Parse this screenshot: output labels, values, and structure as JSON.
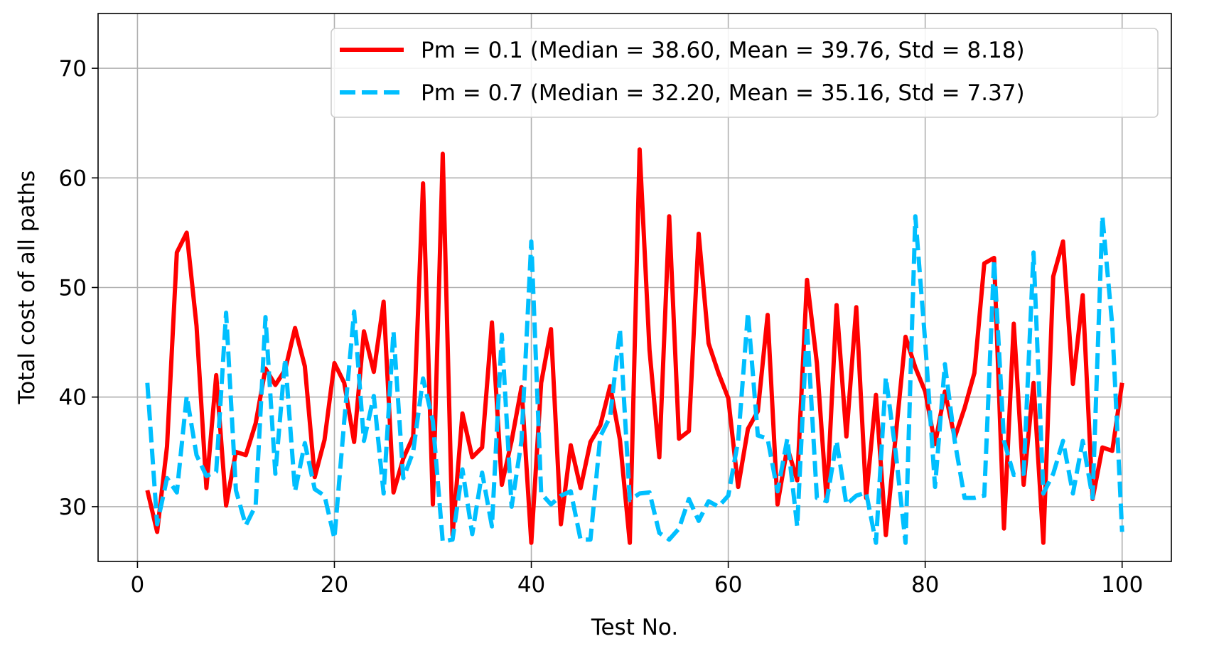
{
  "chart_data": {
    "type": "line",
    "xlabel": "Test No.",
    "ylabel": "Total cost of all paths",
    "xlim": [
      -4,
      105
    ],
    "ylim": [
      25,
      75
    ],
    "xticks": [
      0,
      20,
      40,
      60,
      80,
      100
    ],
    "yticks": [
      30,
      40,
      50,
      60,
      70
    ],
    "xtick_labels": [
      "0",
      "20",
      "40",
      "60",
      "80",
      "100"
    ],
    "ytick_labels": [
      "30",
      "40",
      "50",
      "60",
      "70"
    ],
    "grid": true,
    "legend_position": "top-right",
    "series": [
      {
        "name": "Pm = 0.1 (Median = 38.60, Mean = 39.76, Std = 8.18)",
        "color": "#ff0000",
        "style": "solid",
        "x": [
          1,
          2,
          3,
          4,
          5,
          6,
          7,
          8,
          9,
          10,
          11,
          12,
          13,
          14,
          15,
          16,
          17,
          18,
          19,
          20,
          21,
          22,
          23,
          24,
          25,
          26,
          27,
          28,
          29,
          30,
          31,
          32,
          33,
          34,
          35,
          36,
          37,
          38,
          39,
          40,
          41,
          42,
          43,
          44,
          45,
          46,
          47,
          48,
          49,
          50,
          51,
          52,
          53,
          54,
          55,
          56,
          57,
          58,
          59,
          60,
          61,
          62,
          63,
          64,
          65,
          66,
          67,
          68,
          69,
          70,
          71,
          72,
          73,
          74,
          75,
          76,
          77,
          78,
          79,
          80,
          81,
          82,
          83,
          84,
          85,
          86,
          87,
          88,
          89,
          90,
          91,
          92,
          93,
          94,
          95,
          96,
          97,
          98,
          99,
          100
        ],
        "values": [
          31.5,
          27.7,
          35.5,
          53.2,
          55.0,
          46.5,
          31.7,
          42.0,
          30.1,
          35.0,
          34.7,
          37.6,
          42.6,
          41.1,
          42.5,
          46.3,
          42.8,
          32.7,
          36.1,
          43.1,
          41.3,
          35.9,
          46.0,
          42.3,
          48.7,
          31.3,
          34.4,
          36.4,
          59.5,
          30.2,
          62.2,
          27.4,
          38.5,
          34.5,
          35.4,
          46.8,
          32.0,
          36.0,
          40.9,
          26.7,
          41.3,
          46.2,
          28.4,
          35.6,
          31.7,
          35.9,
          37.4,
          41.0,
          36.1,
          26.7,
          62.6,
          44.3,
          34.5,
          56.5,
          36.2,
          36.9,
          54.9,
          44.9,
          42.2,
          39.9,
          31.8,
          37.1,
          38.7,
          47.5,
          30.2,
          35.4,
          32.4,
          50.7,
          43.1,
          30.5,
          48.4,
          36.4,
          48.2,
          30.8,
          40.2,
          27.4,
          36.4,
          45.5,
          42.7,
          40.5,
          35.7,
          40.5,
          36.3,
          39.0,
          42.2,
          52.2,
          52.7,
          28.0,
          46.7,
          32.0,
          41.3,
          26.7,
          51.0,
          54.2,
          41.2,
          49.3,
          30.7,
          35.4,
          35.1,
          41.3
        ]
      },
      {
        "name": "Pm = 0.7 (Median = 32.20, Mean = 35.16, Std = 7.37)",
        "color": "#00bfff",
        "style": "dashed",
        "x": [
          1,
          2,
          3,
          4,
          5,
          6,
          7,
          8,
          9,
          10,
          11,
          12,
          13,
          14,
          15,
          16,
          17,
          18,
          19,
          20,
          21,
          22,
          23,
          24,
          25,
          26,
          27,
          28,
          29,
          30,
          31,
          32,
          33,
          34,
          35,
          36,
          37,
          38,
          39,
          40,
          41,
          42,
          43,
          44,
          45,
          46,
          47,
          48,
          49,
          50,
          51,
          52,
          53,
          54,
          55,
          56,
          57,
          58,
          59,
          60,
          61,
          62,
          63,
          64,
          65,
          66,
          67,
          68,
          69,
          70,
          71,
          72,
          73,
          74,
          75,
          76,
          77,
          78,
          79,
          80,
          81,
          82,
          83,
          84,
          85,
          86,
          87,
          88,
          89,
          90,
          91,
          92,
          93,
          94,
          95,
          96,
          97,
          98,
          99,
          100
        ],
        "values": [
          41.3,
          28.4,
          32.6,
          31.3,
          40.1,
          34.7,
          32.8,
          33.2,
          47.7,
          31.5,
          28.3,
          30.1,
          47.3,
          33.0,
          43.5,
          31.4,
          35.8,
          31.6,
          31.0,
          27.1,
          37.8,
          47.8,
          36.0,
          40.1,
          31.2,
          46.0,
          32.6,
          35.0,
          41.7,
          37.8,
          26.8,
          27.0,
          33.4,
          27.5,
          33.1,
          28.2,
          45.7,
          30.0,
          36.0,
          54.2,
          31.2,
          30.2,
          31.0,
          31.4,
          27.0,
          27.0,
          36.4,
          38.2,
          46.2,
          30.6,
          31.2,
          31.3,
          27.6,
          27.0,
          28.0,
          30.7,
          28.7,
          30.5,
          30.0,
          31.0,
          36.0,
          47.7,
          36.5,
          36.2,
          31.4,
          36.2,
          28.2,
          46.5,
          30.8,
          30.5,
          36.0,
          30.2,
          31.0,
          31.3,
          26.7,
          41.8,
          35.0,
          26.7,
          56.5,
          45.0,
          31.8,
          43.0,
          36.0,
          30.8,
          30.8,
          31.0,
          52.5,
          36.0,
          32.9,
          33.0,
          53.2,
          31.2,
          33.0,
          36.0,
          31.2,
          36.0,
          30.8,
          56.5,
          46.5,
          27.7
        ]
      }
    ]
  }
}
